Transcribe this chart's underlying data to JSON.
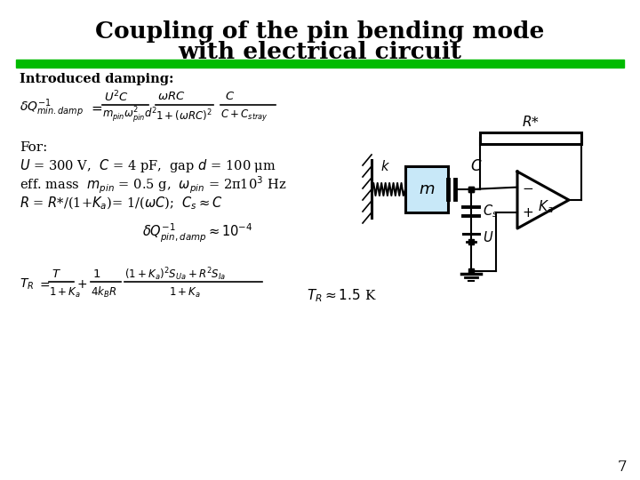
{
  "title_line1": "Coupling of the pin bending mode",
  "title_line2": "with electrical circuit",
  "title_fontsize": 19,
  "green_bar_color": "#00bb00",
  "background_color": "#ffffff",
  "label_introduced": "Introduced damping:",
  "label_for": "For:",
  "page_number": "7",
  "for_line1": "$U$ = 300 V,  $C$ = 4 pF,  gap $d$ = 100 μm",
  "for_line2": "eff. mass  $m_{pin}$ = 0.5 g,  $\\omega_{pin}$ = 2π10$^3$ Hz",
  "for_line3": "$R$ = $R$*/(1+$K_a$)= 1/($\\omega C$);  $C_s \\approx C$",
  "formula1_lhs": "$\\delta Q^{-1}_{min.damp}$",
  "formula1_eq": "$=$",
  "formula1_frac1_num": "$U^2C$",
  "formula1_frac1_den": "$m_{pin}\\omega^2_{pin}d^2$",
  "formula1_frac2_num": "$\\omega RC$",
  "formula1_frac2_den": "$1+(\\omega RC)^2$",
  "formula1_frac3_num": "$C$",
  "formula1_frac3_den": "$C+C_{stray}$",
  "formula2": "$\\delta Q^{-1}_{pin,damp} \\approx 10^{-4}$",
  "formula3_lhs": "$T_R$",
  "formula3_rhs": "$= \\dfrac{T}{1+K_a} + \\dfrac{1}{4k_B R} \\cdot \\dfrac{(1+K_a)^2 S_{Ua} + R^2 S_{Ia}}{1+K_a}$",
  "formula_TR": "$T_R \\approx 1.5$ K"
}
